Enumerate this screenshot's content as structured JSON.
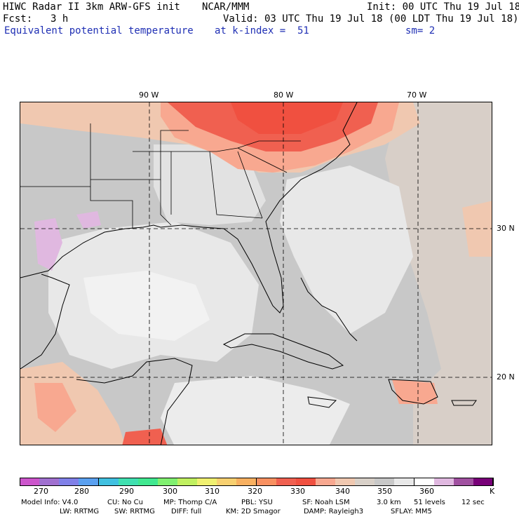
{
  "header": {
    "title": "HIWC Radar II 3km ARW-GFS init",
    "org": "NCAR/MMM",
    "init": "Init: 00 UTC Thu 19 Jul 18",
    "fcst_label": "Fcst:",
    "fcst_value": "3 h",
    "valid": "Valid: 03 UTC Thu 19 Jul 18 (00 LDT Thu 19 Jul 18)",
    "field": "Equivalent potential temperature",
    "level": "at k-index =  51",
    "smoothing": "sm= 2"
  },
  "map": {
    "lon_labels": [
      "90 W",
      "80 W",
      "70 W"
    ],
    "lat_labels": [
      "30 N",
      "20 N"
    ]
  },
  "colorbar": {
    "colors": [
      "#cc55cc",
      "#a070d0",
      "#8080e8",
      "#5aa0f0",
      "#40c0e0",
      "#40e0b0",
      "#40e890",
      "#80f070",
      "#c0f060",
      "#f0f070",
      "#f8d070",
      "#f8b060",
      "#f89060",
      "#f06050",
      "#f05040",
      "#f8a890",
      "#f0c8b0",
      "#d8d0c8",
      "#c8c8c8",
      "#e8e8e8",
      "#ffffff",
      "#e0b8e0",
      "#a050a0",
      "#780078"
    ],
    "labels": [
      "270",
      "280",
      "290",
      "300",
      "310",
      "320",
      "330",
      "340",
      "350",
      "360",
      "K"
    ]
  },
  "footer": {
    "line1": [
      "Model Info: V4.0",
      "CU: No Cu",
      "MP: Thomp C/A",
      "PBL: YSU",
      "SF: Noah LSM",
      "3.0 km",
      "51 levels",
      "12 sec"
    ],
    "line2": [
      "LW: RRTMG",
      "SW: RRTMG",
      "DIFF: full",
      "KM: 2D Smagor",
      "DAMP: Rayleigh3",
      "SFLAY: MM5"
    ]
  }
}
